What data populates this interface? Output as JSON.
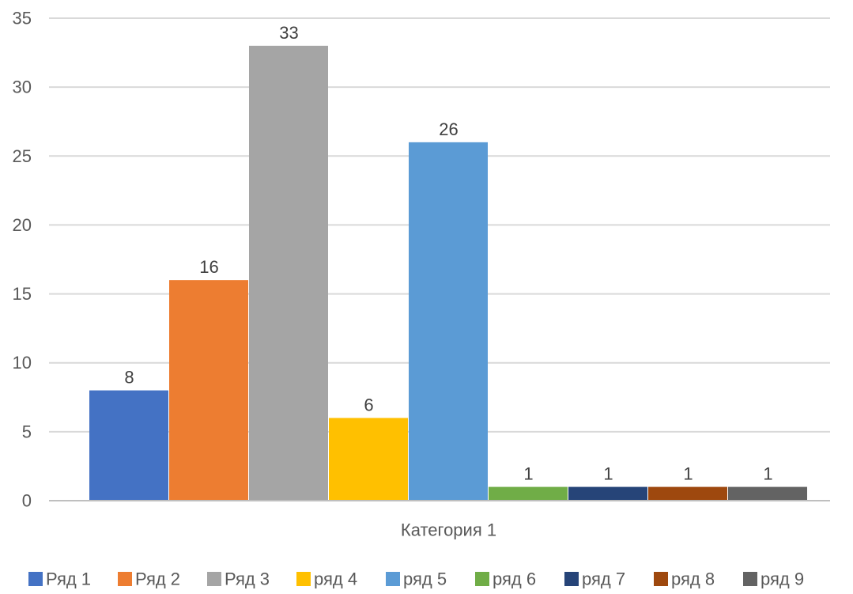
{
  "chart_data": {
    "type": "bar",
    "categories": [
      "Категория 1"
    ],
    "series": [
      {
        "name": "Ряд 1",
        "values": [
          8
        ],
        "color": "#4472C4"
      },
      {
        "name": "Ряд 2",
        "values": [
          16
        ],
        "color": "#ED7D31"
      },
      {
        "name": "Ряд 3",
        "values": [
          33
        ],
        "color": "#A5A5A5"
      },
      {
        "name": "ряд 4",
        "values": [
          6
        ],
        "color": "#FFC000"
      },
      {
        "name": "ряд 5",
        "values": [
          26
        ],
        "color": "#5B9BD5"
      },
      {
        "name": "ряд 6",
        "values": [
          1
        ],
        "color": "#70AD47"
      },
      {
        "name": "ряд 7",
        "values": [
          1
        ],
        "color": "#264478"
      },
      {
        "name": "ряд 8",
        "values": [
          1
        ],
        "color": "#9E480E"
      },
      {
        "name": "ряд 9",
        "values": [
          1
        ],
        "color": "#636363"
      }
    ],
    "y_ticks": [
      "0",
      "5",
      "10",
      "15",
      "20",
      "25",
      "30",
      "35"
    ],
    "ylim": [
      0,
      35
    ],
    "grid": true,
    "data_labels": true,
    "legend_position": "bottom"
  }
}
